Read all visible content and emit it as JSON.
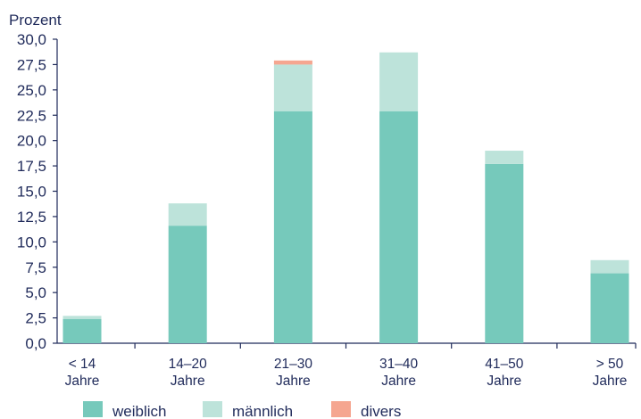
{
  "chart_data": {
    "type": "bar",
    "stacked": true,
    "title": "",
    "xlabel": "",
    "ylabel": "Prozent",
    "ylim": [
      0,
      30
    ],
    "y_ticks": [
      "0,0",
      "2,5",
      "5,0",
      "7,5",
      "10,0",
      "12,5",
      "15,0",
      "17,5",
      "20,0",
      "22,5",
      "25,0",
      "27,5",
      "30,0"
    ],
    "grid": false,
    "legend_position": "bottom-left",
    "categories": [
      {
        "line1": "< 14",
        "line2": "Jahre"
      },
      {
        "line1": "14–20",
        "line2": "Jahre"
      },
      {
        "line1": "21–30",
        "line2": "Jahre"
      },
      {
        "line1": "31–40",
        "line2": "Jahre"
      },
      {
        "line1": "41–50",
        "line2": "Jahre"
      },
      {
        "line1": "> 50",
        "line2": "Jahre"
      }
    ],
    "series": [
      {
        "name": "weiblich",
        "color": "#76c9bb",
        "values": [
          2.4,
          11.6,
          22.9,
          22.9,
          17.7,
          6.9
        ]
      },
      {
        "name": "männlich",
        "color": "#bde3da",
        "values": [
          0.3,
          2.2,
          4.6,
          5.8,
          1.3,
          1.3
        ]
      },
      {
        "name": "divers",
        "color": "#f5a690",
        "values": [
          0.0,
          0.0,
          0.4,
          0.0,
          0.0,
          0.0
        ]
      }
    ]
  }
}
